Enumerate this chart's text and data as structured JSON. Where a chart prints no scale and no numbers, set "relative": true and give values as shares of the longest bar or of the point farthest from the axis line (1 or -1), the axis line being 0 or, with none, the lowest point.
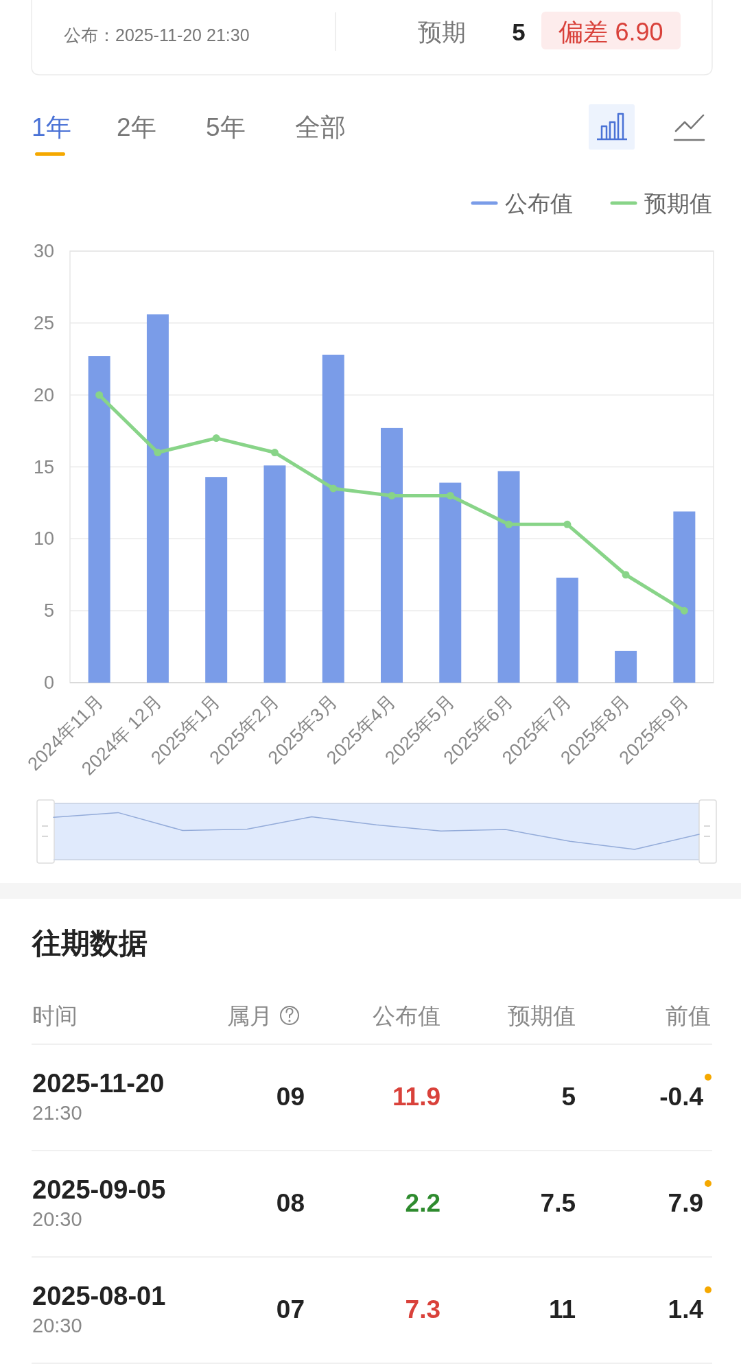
{
  "chart_data": [
    {
      "type": "bar",
      "categories": [
        "2024年11月",
        "2024年 12月",
        "2025年1月",
        "2025年2月",
        "2025年3月",
        "2025年4月",
        "2025年5月",
        "2025年6月",
        "2025年7月",
        "2025年8月",
        "2025年9月"
      ],
      "series": [
        {
          "name": "公布值",
          "type": "bar",
          "color": "#7a9ce8",
          "values": [
            22.7,
            25.6,
            14.3,
            15.1,
            22.8,
            17.7,
            13.9,
            14.7,
            7.3,
            2.2,
            11.9
          ]
        },
        {
          "name": "预期值",
          "type": "line",
          "color": "#88d488",
          "values": [
            20,
            16,
            17,
            16,
            13.5,
            13,
            13,
            11,
            11,
            7.5,
            5
          ]
        }
      ],
      "ylim": [
        0,
        30
      ],
      "yticks": [
        0,
        5,
        10,
        15,
        20,
        25,
        30
      ],
      "grid": "y",
      "legend": "top right",
      "marker": "circle",
      "annotations": [
        "公布：2025-11-20 21:30",
        "预期",
        "5",
        "偏差 6.90",
        "1年",
        "2年",
        "5年",
        "全部",
        "往期数据",
        "时间",
        "属月",
        "公布值",
        "预期值",
        "前值",
        "2025-11-20",
        "21:30",
        "09",
        "11.9",
        "5",
        "-0.4",
        "2025-09-05",
        "20:30",
        "08",
        "2.2",
        "7.5",
        "7.9",
        "2025-08-01",
        "20:30",
        "07",
        "7.3",
        "11",
        "1.4"
      ]
    },
    {
      "type": "line",
      "relative": true,
      "categories": [
        null,
        null,
        null,
        null,
        null,
        null,
        null,
        null,
        null,
        null,
        null
      ],
      "series": [
        {
          "color": "#93abd9",
          "values": [
            0.9,
            1,
            0.62,
            0.65,
            0.91,
            0.74,
            0.61,
            0.64,
            0.39,
            0.22,
            0.54
          ]
        }
      ]
    }
  ]
}
